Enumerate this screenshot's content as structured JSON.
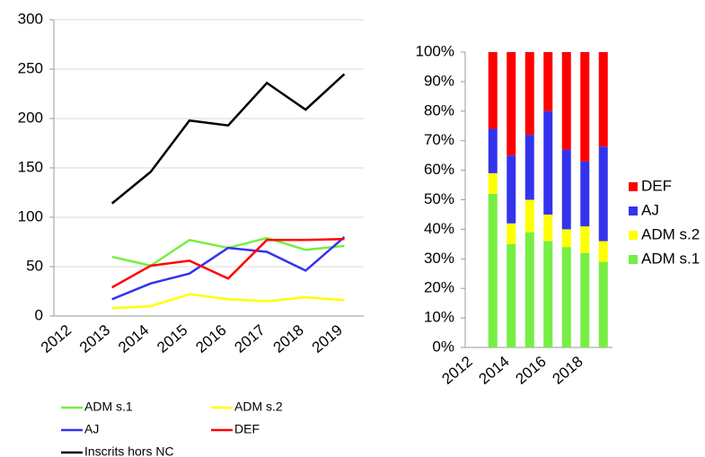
{
  "chart_data": [
    {
      "type": "line",
      "categories": [
        "2012",
        "2013",
        "2014",
        "2015",
        "2016",
        "2017",
        "2018",
        "2019"
      ],
      "series": [
        {
          "name": "ADM s.1",
          "color": "#77ee44",
          "values": [
            null,
            60,
            51,
            77,
            69,
            79,
            67,
            71
          ]
        },
        {
          "name": "ADM s.2",
          "color": "#ffff00",
          "values": [
            null,
            8,
            10,
            22,
            17,
            15,
            19,
            16
          ]
        },
        {
          "name": "AJ",
          "color": "#3333ee",
          "values": [
            null,
            17,
            33,
            43,
            69,
            65,
            46,
            80
          ]
        },
        {
          "name": "DEF",
          "color": "#ff0000",
          "values": [
            null,
            29,
            51,
            56,
            38,
            77,
            77,
            78
          ]
        },
        {
          "name": "Inscrits hors NC",
          "color": "#000000",
          "values": [
            null,
            114,
            146,
            198,
            193,
            236,
            209,
            245
          ]
        }
      ],
      "ylim": [
        0,
        300
      ],
      "yticks": [
        0,
        50,
        100,
        150,
        200,
        250,
        300
      ],
      "grid": true
    },
    {
      "type": "stacked_bar_100",
      "categories": [
        "2012",
        null,
        "2014",
        null,
        "2016",
        null,
        "2018",
        null
      ],
      "series": [
        {
          "name": "ADM s.1",
          "color": "#77ee44",
          "values": [
            null,
            52,
            35,
            39,
            36,
            34,
            32,
            29
          ]
        },
        {
          "name": "ADM s.2",
          "color": "#ffff00",
          "values": [
            null,
            7,
            7,
            11,
            9,
            6,
            9,
            7
          ]
        },
        {
          "name": "AJ",
          "color": "#3333ee",
          "values": [
            null,
            15,
            23,
            22,
            35,
            27,
            22,
            32
          ]
        },
        {
          "name": "DEF",
          "color": "#ff0000",
          "values": [
            null,
            26,
            35,
            28,
            20,
            33,
            37,
            32
          ]
        }
      ],
      "ylim": [
        0,
        100
      ],
      "yticks": [
        {
          "value": 0,
          "label": "0%"
        },
        {
          "value": 10,
          "label": "10%"
        },
        {
          "value": 20,
          "label": "20%"
        },
        {
          "value": 30,
          "label": "30%"
        },
        {
          "value": 40,
          "label": "40%"
        },
        {
          "value": 50,
          "label": "50%"
        },
        {
          "value": 60,
          "label": "60%"
        },
        {
          "value": 70,
          "label": "70%"
        },
        {
          "value": 80,
          "label": "80%"
        },
        {
          "value": 90,
          "label": "90%"
        },
        {
          "value": 100,
          "label": "100%"
        }
      ],
      "grid": false,
      "legend": "right"
    }
  ]
}
